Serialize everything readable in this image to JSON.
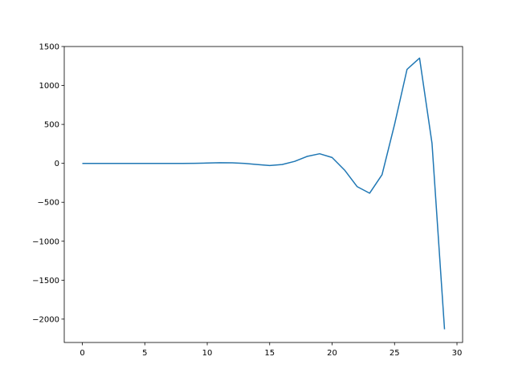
{
  "chart_data": {
    "type": "line",
    "title": "",
    "xlabel": "",
    "ylabel": "",
    "xlim": [
      -1.45,
      30.45
    ],
    "ylim": [
      -2300,
      1500
    ],
    "xticks": [
      0,
      5,
      10,
      15,
      20,
      25,
      30
    ],
    "yticks": [
      1500,
      1000,
      500,
      0,
      -500,
      -1000,
      -1500,
      -2000
    ],
    "ytick_labels": [
      "1500",
      "1000",
      "500",
      "0",
      "−500",
      "−1000",
      "−1500",
      "−2000"
    ],
    "grid": false,
    "line_color": "#1f77b4",
    "series": [
      {
        "x": [
          0,
          1,
          2,
          3,
          4,
          5,
          6,
          7,
          8,
          9,
          10,
          11,
          12,
          13,
          14,
          15,
          16,
          17,
          18,
          19,
          20,
          21,
          22,
          23,
          24,
          25,
          26,
          27,
          28,
          29
        ],
        "y": [
          0,
          0,
          0,
          0,
          0,
          0,
          0,
          -1,
          -1,
          1,
          4,
          8,
          7,
          0,
          -15,
          -28,
          -15,
          25,
          89,
          123,
          75,
          -87,
          -298,
          -384,
          -146,
          500,
          1207,
          1352,
          258,
          -2131
        ]
      }
    ]
  }
}
